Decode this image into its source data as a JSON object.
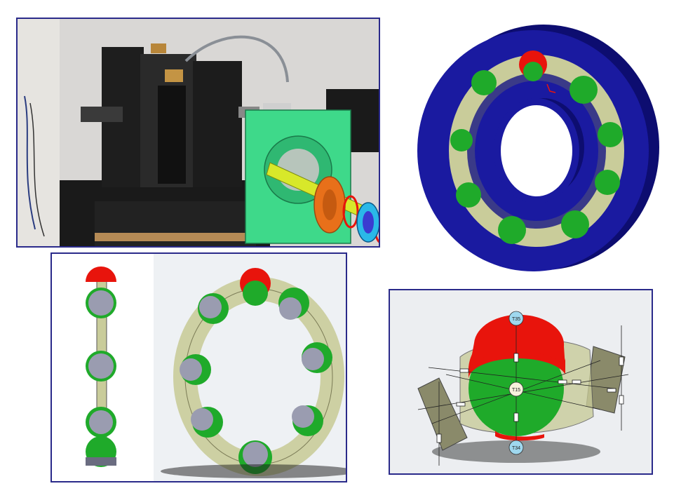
{
  "panels": {
    "test_rig_photo": {
      "description_icon": "test-rig-photo"
    },
    "bearing_model": {
      "description_icon": "bearing-3d-model"
    },
    "cage_views": {
      "description_icon": "cage-and-balls"
    },
    "thermal_network": {
      "nodes": {
        "top": "T35",
        "center": "T15",
        "bottom": "T34"
      }
    }
  },
  "colors": {
    "frame": "#2a2a8a",
    "ring_blue": "#1a1aa0",
    "ball_green": "#1faa2a",
    "ball_red": "#e8140c",
    "ball_gray": "#9a9cb0",
    "cage": "#c9cc9a",
    "housing_green": "#3ed98a",
    "node_cyan": "#9fd8ef",
    "node_center": "#f7f1dc"
  }
}
